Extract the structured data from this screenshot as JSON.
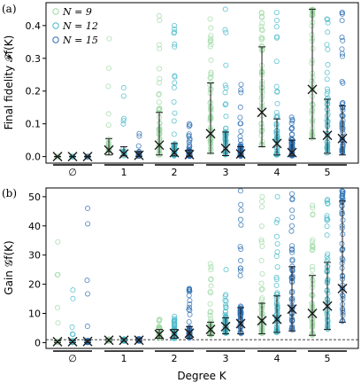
{
  "figure": {
    "xlabel": "Degree K",
    "x_tick_labels": [
      "∅",
      "1",
      "2",
      "3",
      "4",
      "5"
    ],
    "colors": {
      "N=9": "#9fd9a6",
      "N=12": "#45b8c9",
      "N=15": "#2b6fb3",
      "cross": "#1a1a1a"
    },
    "legend_placement": "top-left"
  },
  "chart_data": [
    {
      "panel": "(a)",
      "type": "scatter",
      "ylabel": "Final fidelity 𝓕f(K)",
      "ylim": [
        -0.02,
        0.47
      ],
      "yticks": [
        "0.0",
        "0.1",
        "0.2",
        "0.3",
        "0.4"
      ],
      "legend": [
        "N = 9",
        "N = 12",
        "N = 15"
      ],
      "categories": [
        "∅",
        "1",
        "2",
        "3",
        "4",
        "5"
      ],
      "series": [
        {
          "name": "N = 9",
          "mean": [
            0.0,
            0.02,
            0.035,
            0.07,
            0.135,
            0.205
          ],
          "lower": [
            0.0,
            0.005,
            0.005,
            0.01,
            0.03,
            0.055
          ],
          "upper": [
            0.0,
            0.055,
            0.135,
            0.225,
            0.335,
            0.45
          ],
          "max": [
            0.0,
            0.36,
            0.43,
            0.42,
            0.44,
            0.43
          ]
        },
        {
          "name": "N = 12",
          "mean": [
            0.0,
            0.008,
            0.012,
            0.025,
            0.04,
            0.065
          ],
          "lower": [
            0.0,
            0.002,
            0.002,
            0.003,
            0.005,
            0.01
          ],
          "upper": [
            0.0,
            0.03,
            0.04,
            0.075,
            0.115,
            0.175
          ],
          "max": [
            0.0,
            0.21,
            0.4,
            0.45,
            0.44,
            0.42
          ]
        },
        {
          "name": "N = 15",
          "mean": [
            0.0,
            0.004,
            0.006,
            0.008,
            0.012,
            0.055
          ],
          "lower": [
            0.0,
            0.001,
            0.001,
            0.001,
            0.002,
            0.005
          ],
          "upper": [
            0.0,
            0.015,
            0.02,
            0.03,
            0.05,
            0.155
          ],
          "max": [
            0.0,
            0.07,
            0.1,
            0.22,
            0.12,
            0.44
          ]
        }
      ]
    },
    {
      "panel": "(b)",
      "type": "scatter",
      "ylabel": "Gain 𝒢f(K)",
      "ylim": [
        -2,
        53
      ],
      "yticks": [
        "0",
        "10",
        "20",
        "30",
        "40",
        "50"
      ],
      "reference_line": 1,
      "categories": [
        "∅",
        "1",
        "2",
        "3",
        "4",
        "5"
      ],
      "series": [
        {
          "name": "N = 9",
          "mean": [
            0.3,
            0.8,
            2.8,
            4.5,
            7.5,
            10.0
          ],
          "lower": [
            0.0,
            0.5,
            1.5,
            2.5,
            3.0,
            2.5
          ],
          "upper": [
            0.6,
            1.2,
            4.5,
            7.0,
            13.5,
            23.0
          ],
          "max": [
            34.5,
            1.0,
            8.0,
            27.0,
            50.0,
            47.0
          ]
        },
        {
          "name": "N = 12",
          "mean": [
            0.3,
            0.8,
            3.0,
            5.5,
            8.0,
            12.5
          ],
          "lower": [
            0.0,
            0.5,
            1.5,
            3.0,
            3.5,
            4.5
          ],
          "upper": [
            0.7,
            1.3,
            4.5,
            8.5,
            16.0,
            27.5
          ],
          "max": [
            18.0,
            1.0,
            9.0,
            25.0,
            50.0,
            49.0
          ]
        },
        {
          "name": "N = 15",
          "mean": [
            0.4,
            0.8,
            3.2,
            6.5,
            11.5,
            18.5
          ],
          "lower": [
            0.0,
            0.5,
            1.5,
            3.0,
            4.0,
            7.0
          ],
          "upper": [
            0.8,
            1.3,
            5.5,
            12.0,
            26.0,
            48.5
          ],
          "max": [
            46.0,
            1.0,
            18.5,
            52.0,
            51.0,
            52.0
          ]
        }
      ]
    }
  ]
}
